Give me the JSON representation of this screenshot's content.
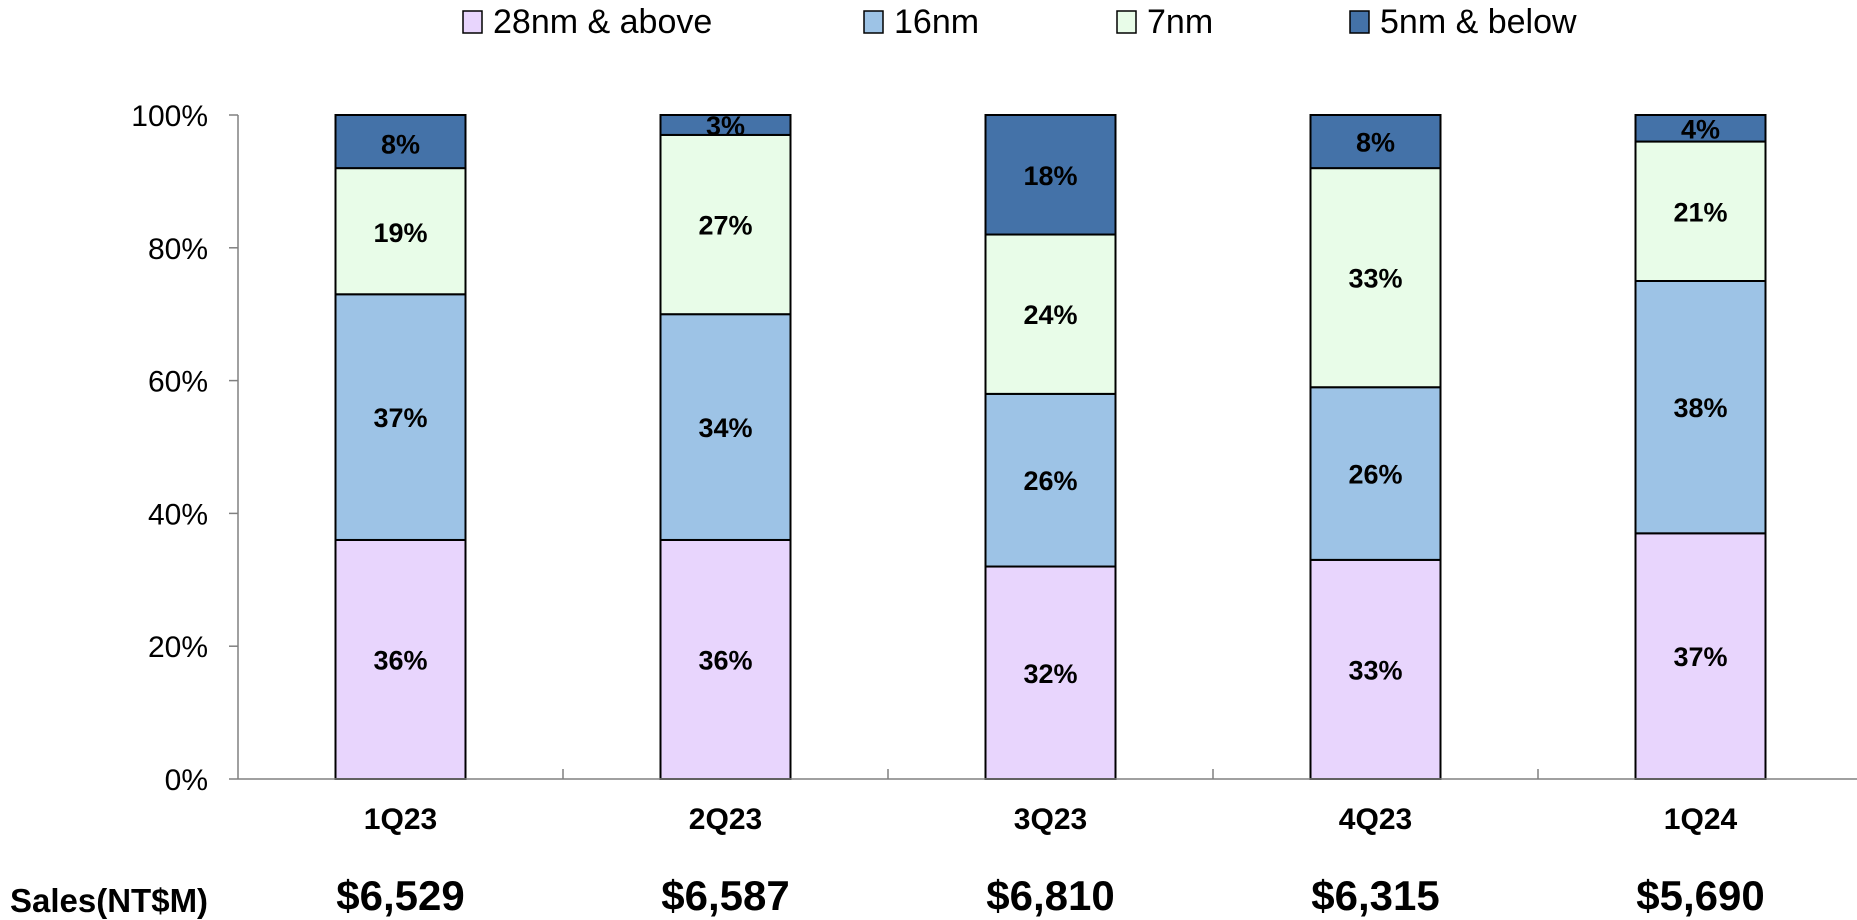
{
  "chart_data": {
    "type": "bar",
    "stacked": true,
    "categories": [
      "1Q23",
      "2Q23",
      "3Q23",
      "4Q23",
      "1Q24"
    ],
    "series": [
      {
        "name": "28nm & above",
        "color": "#E8D5FD",
        "values": [
          36,
          36,
          32,
          33,
          37
        ]
      },
      {
        "name": "16nm",
        "color": "#9DC3E6",
        "values": [
          37,
          34,
          26,
          26,
          38
        ]
      },
      {
        "name": "7nm",
        "color": "#E8FCE8",
        "values": [
          19,
          27,
          24,
          33,
          21
        ]
      },
      {
        "name": "5nm & below",
        "color": "#4472A8",
        "values": [
          8,
          3,
          18,
          8,
          4
        ]
      }
    ],
    "data_labels": [
      [
        "36%",
        "36%",
        "32%",
        "33%",
        "37%"
      ],
      [
        "37%",
        "34%",
        "26%",
        "26%",
        "38%"
      ],
      [
        "19%",
        "27%",
        "24%",
        "33%",
        "21%"
      ],
      [
        "8%",
        "3%",
        "18%",
        "8%",
        "4%"
      ]
    ],
    "ylim": [
      0,
      100
    ],
    "yticks": [
      "0%",
      "20%",
      "40%",
      "60%",
      "80%",
      "100%"
    ],
    "ytick_values": [
      0,
      20,
      40,
      60,
      80,
      100
    ],
    "legend_placement": "top",
    "grid": false
  },
  "sales": {
    "title": "Sales(NT$M)",
    "values": [
      "$6,529",
      "$6,587",
      "$6,810",
      "$6,315",
      "$5,690"
    ]
  }
}
